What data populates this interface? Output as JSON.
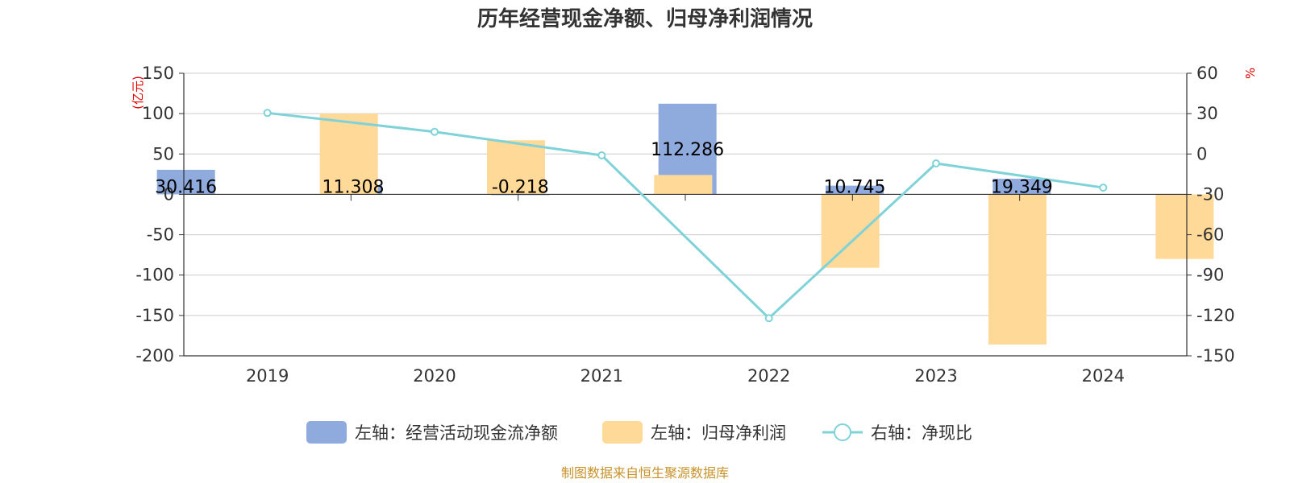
{
  "chart_data": {
    "type": "bar",
    "title": "历年经营现金净额、归母净利润情况",
    "categories": [
      "2019",
      "2020",
      "2021",
      "2022",
      "2023",
      "2024"
    ],
    "left_axis": {
      "unit": "(亿元)",
      "ylim": [
        -200,
        150
      ],
      "ticks": [
        "150",
        "100",
        "50",
        "0",
        "-50",
        "-100",
        "-150",
        "-200"
      ]
    },
    "right_axis": {
      "unit": "%",
      "ylim": [
        -150,
        60
      ],
      "ticks": [
        "60",
        "30",
        "0",
        "-30",
        "-60",
        "-90",
        "-120",
        "-150"
      ]
    },
    "series": [
      {
        "name": "左轴：经营活动现金流净额",
        "axis": "left",
        "kind": "bar",
        "color": "#8faadc",
        "values": [
          30.416,
          11.308,
          -0.218,
          112.286,
          10.745,
          19.349
        ],
        "labels": [
          "30.416",
          "11.308",
          "-0.218",
          "112.286",
          "10.745",
          "19.349"
        ]
      },
      {
        "name": "左轴：归母净利润",
        "axis": "left",
        "kind": "bar",
        "color": "#ffd998",
        "values": [
          100,
          67,
          24,
          -91,
          -186,
          -80
        ]
      },
      {
        "name": "右轴：净现比",
        "axis": "right",
        "kind": "line",
        "color": "#7fd3d8",
        "values": [
          30.5,
          16.5,
          -1,
          -122,
          -7,
          -25
        ]
      }
    ],
    "grid": true,
    "legend_position": "bottom"
  },
  "source": "制图数据来自恒生聚源数据库"
}
